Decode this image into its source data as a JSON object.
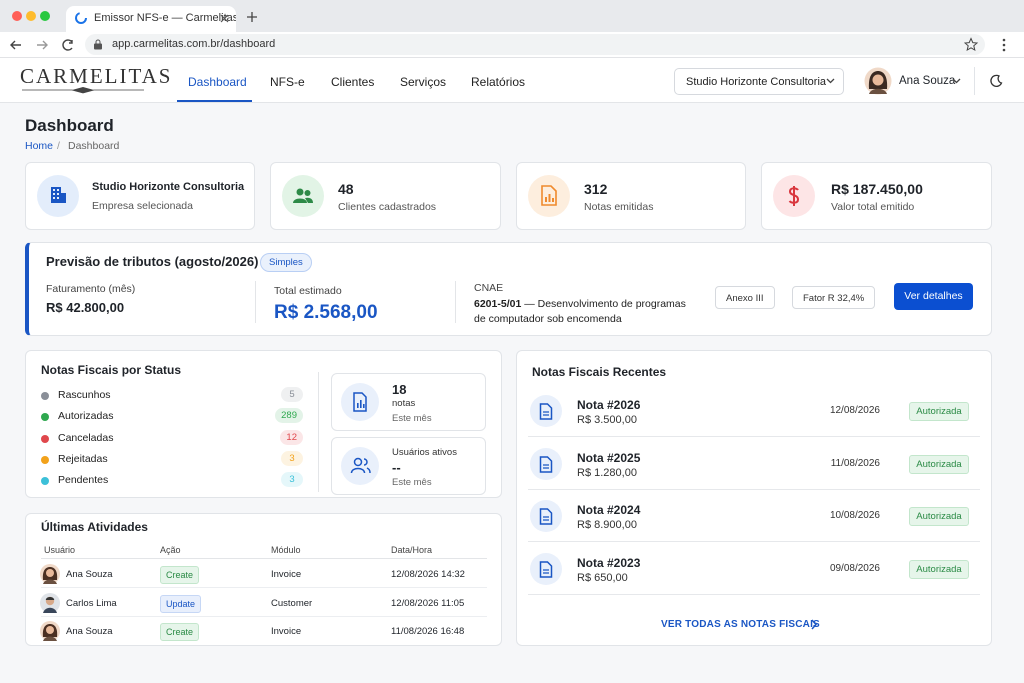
{
  "browser": {
    "tab_title": "Emissor NFS-e — Carmelitas",
    "url": "app.carmelitas.com.br/dashboard"
  },
  "nav": {
    "logo": "CARMELITAS",
    "items": [
      "Dashboard",
      "NFS-e",
      "Clientes",
      "Serviços",
      "Relatórios"
    ],
    "company": "Studio Horizonte Consultoria",
    "user": "Ana Souza"
  },
  "page": {
    "title": "Dashboard",
    "breadcrumb": [
      "Home",
      "Dashboard"
    ],
    "breadcrumb_separator": "/"
  },
  "stats": [
    {
      "value": "Studio Horizonte Consultoria",
      "label": "Empresa selecionada"
    },
    {
      "value": "48",
      "label": "Clientes cadastrados"
    },
    {
      "value": "312",
      "label": "Notas emitidas"
    },
    {
      "value": "R$ 187.450,00",
      "label": "Valor total emitido"
    }
  ],
  "tax": {
    "title": "Previsão de tributos (agosto/2026)",
    "badge": "Simples",
    "revenue_label": "Faturamento (mês)",
    "revenue": "R$ 42.800,00",
    "total_label": "Total estimado",
    "total": "R$ 2.568,00",
    "cnae_label": "CNAE",
    "cnae_code": "6201-5/01",
    "cnae_text": "— Desenvolvimento de programas de computador sob encomenda",
    "chips": [
      "Anexo III",
      "Fator R 32,4%"
    ],
    "button": "Ver detalhes"
  },
  "status": {
    "title": "Notas Fiscais por Status",
    "rows": [
      {
        "label": "Rascunhos",
        "count": "5",
        "color": "#8a8f98"
      },
      {
        "label": "Autorizadas",
        "count": "289",
        "color": "#2fa84f"
      },
      {
        "label": "Canceladas",
        "count": "12",
        "color": "#e0474c"
      },
      {
        "label": "Rejeitadas",
        "count": "3",
        "color": "#f2a21b"
      },
      {
        "label": "Pendentes",
        "count": "3",
        "color": "#3cc0d8"
      }
    ]
  },
  "summary": [
    {
      "value": "18",
      "unit": "notas",
      "caption": "Este mês"
    },
    {
      "label": "Usuários ativos",
      "value": "--",
      "caption": "Este mês"
    }
  ],
  "activities": {
    "title": "Últimas Atividades",
    "columns": [
      "Usuário",
      "Ação",
      "Módulo",
      "Data/Hora"
    ],
    "rows": [
      {
        "user": "Ana Souza",
        "action": "Create",
        "module": "Invoice",
        "datetime": "12/08/2026 14:32"
      },
      {
        "user": "Carlos Lima",
        "action": "Update",
        "module": "Customer",
        "datetime": "12/08/2026 11:05"
      },
      {
        "user": "Ana Souza",
        "action": "Create",
        "module": "Invoice",
        "datetime": "11/08/2026 16:48"
      }
    ]
  },
  "recent": {
    "title": "Notas Fiscais Recentes",
    "items": [
      {
        "name": "Nota #2026",
        "amount": "R$ 3.500,00",
        "date": "12/08/2026",
        "status": "Autorizada"
      },
      {
        "name": "Nota #2025",
        "amount": "R$ 1.280,00",
        "date": "11/08/2026",
        "status": "Autorizada"
      },
      {
        "name": "Nota #2024",
        "amount": "R$ 8.900,00",
        "date": "10/08/2026",
        "status": "Autorizada"
      },
      {
        "name": "Nota #2023",
        "amount": "R$ 650,00",
        "date": "09/08/2026",
        "status": "Autorizada"
      }
    ],
    "link": "VER TODAS AS NOTAS FISCAIS"
  }
}
